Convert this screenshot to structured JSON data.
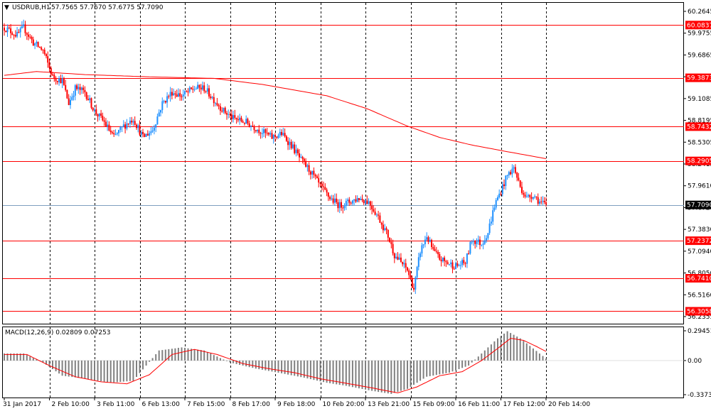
{
  "header": {
    "symbol": "USDRUB,H1",
    "ohlc": "57.7565 57.7670 57.6775 57.7090"
  },
  "macd_header": {
    "label": "MACD(12,26,9) 0.02809 0.07253"
  },
  "colors": {
    "bull": "#1e90ff",
    "bear": "#ff0000",
    "level_line": "#ff0000",
    "ma_line": "#ff0000",
    "current_line": "#7f9fbf",
    "macd_hist": "#808080",
    "macd_signal": "#ff0000",
    "grid": "#000000"
  },
  "price_axis": {
    "ticks": [
      "60.2645",
      "59.9755",
      "59.6865",
      "59.3975",
      "59.1085",
      "58.8195",
      "58.5305",
      "58.2415",
      "57.9610",
      "57.6720",
      "57.3830",
      "57.0940",
      "56.8050",
      "56.5160",
      "56.2355"
    ]
  },
  "time_axis": {
    "labels": [
      "31 Jan 2017",
      "2 Feb 10:00",
      "3 Feb 11:00",
      "6 Feb 13:00",
      "7 Feb 15:00",
      "8 Feb 17:00",
      "9 Feb 18:00",
      "10 Feb 20:00",
      "13 Feb 21:00",
      "15 Feb 09:00",
      "16 Feb 11:00",
      "17 Feb 12:00",
      "20 Feb 14:00"
    ]
  },
  "macd_axis": {
    "ticks": [
      "0.29451",
      "0.00",
      "-0.33739"
    ]
  },
  "chart_data": {
    "type": "candlestick",
    "title": "USDRUB,H1",
    "ylim": [
      56.2355,
      60.2645
    ],
    "horizontal_levels": [
      {
        "value": 60.0837,
        "label": "60.0837"
      },
      {
        "value": 59.3873,
        "label": "59.3873"
      },
      {
        "value": 58.7432,
        "label": "58.7432"
      },
      {
        "value": 58.2905,
        "label": "58.2905"
      },
      {
        "value": 57.2372,
        "label": "57.2372"
      },
      {
        "value": 56.741,
        "label": "56.7410"
      },
      {
        "value": 56.3058,
        "label": "56.3058"
      }
    ],
    "current_price": {
      "value": 57.709,
      "label": "57.7090"
    },
    "price_path": [
      [
        0,
        60.05
      ],
      [
        4,
        60.0
      ],
      [
        8,
        59.95
      ],
      [
        12,
        60.05
      ],
      [
        18,
        59.85
      ],
      [
        24,
        59.75
      ],
      [
        30,
        59.4
      ],
      [
        36,
        59.35
      ],
      [
        40,
        59.05
      ],
      [
        44,
        59.25
      ],
      [
        50,
        59.2
      ],
      [
        56,
        58.95
      ],
      [
        62,
        58.8
      ],
      [
        68,
        58.6
      ],
      [
        74,
        58.75
      ],
      [
        80,
        58.85
      ],
      [
        86,
        58.6
      ],
      [
        92,
        58.7
      ],
      [
        98,
        59.05
      ],
      [
        104,
        59.2
      ],
      [
        110,
        59.15
      ],
      [
        118,
        59.25
      ],
      [
        124,
        59.25
      ],
      [
        130,
        59.1
      ],
      [
        136,
        58.95
      ],
      [
        142,
        58.85
      ],
      [
        150,
        58.8
      ],
      [
        158,
        58.7
      ],
      [
        166,
        58.6
      ],
      [
        172,
        58.65
      ],
      [
        178,
        58.5
      ],
      [
        184,
        58.3
      ],
      [
        190,
        58.15
      ],
      [
        196,
        57.95
      ],
      [
        202,
        57.8
      ],
      [
        208,
        57.7
      ],
      [
        214,
        57.75
      ],
      [
        220,
        57.8
      ],
      [
        226,
        57.75
      ],
      [
        232,
        57.55
      ],
      [
        238,
        57.3
      ],
      [
        242,
        57.05
      ],
      [
        246,
        56.95
      ],
      [
        250,
        56.85
      ],
      [
        254,
        56.6
      ],
      [
        258,
        57.1
      ],
      [
        262,
        57.3
      ],
      [
        266,
        57.1
      ],
      [
        270,
        57.0
      ],
      [
        274,
        56.95
      ],
      [
        280,
        56.9
      ],
      [
        286,
        56.95
      ],
      [
        290,
        57.25
      ],
      [
        296,
        57.2
      ],
      [
        300,
        57.35
      ],
      [
        304,
        57.7
      ],
      [
        308,
        57.9
      ],
      [
        312,
        58.1
      ],
      [
        316,
        58.2
      ],
      [
        320,
        57.95
      ],
      [
        324,
        57.8
      ],
      [
        328,
        57.85
      ],
      [
        332,
        57.75
      ],
      [
        336,
        57.7
      ]
    ],
    "moving_average": [
      [
        0,
        59.42
      ],
      [
        20,
        59.47
      ],
      [
        50,
        59.43
      ],
      [
        90,
        59.4
      ],
      [
        130,
        59.38
      ],
      [
        160,
        59.3
      ],
      [
        200,
        59.15
      ],
      [
        225,
        58.98
      ],
      [
        250,
        58.75
      ],
      [
        270,
        58.6
      ],
      [
        290,
        58.5
      ],
      [
        310,
        58.42
      ],
      [
        336,
        58.32
      ]
    ],
    "macd": {
      "ylim": [
        -0.33739,
        0.29451
      ],
      "macd_path": [
        [
          0,
          0.07
        ],
        [
          12,
          0.07
        ],
        [
          24,
          -0.02
        ],
        [
          36,
          -0.15
        ],
        [
          50,
          -0.18
        ],
        [
          66,
          -0.22
        ],
        [
          80,
          -0.2
        ],
        [
          96,
          0.1
        ],
        [
          110,
          0.13
        ],
        [
          124,
          0.1
        ],
        [
          140,
          -0.02
        ],
        [
          156,
          -0.08
        ],
        [
          170,
          -0.12
        ],
        [
          186,
          -0.17
        ],
        [
          200,
          -0.22
        ],
        [
          212,
          -0.25
        ],
        [
          228,
          -0.3
        ],
        [
          240,
          -0.33
        ],
        [
          250,
          -0.28
        ],
        [
          262,
          -0.16
        ],
        [
          276,
          -0.12
        ],
        [
          288,
          -0.05
        ],
        [
          298,
          0.1
        ],
        [
          306,
          0.22
        ],
        [
          312,
          0.29
        ],
        [
          320,
          0.22
        ],
        [
          328,
          0.12
        ],
        [
          336,
          0.02
        ]
      ],
      "signal_path": [
        [
          0,
          0.06
        ],
        [
          14,
          0.06
        ],
        [
          28,
          -0.05
        ],
        [
          44,
          -0.16
        ],
        [
          60,
          -0.21
        ],
        [
          76,
          -0.23
        ],
        [
          90,
          -0.14
        ],
        [
          104,
          0.06
        ],
        [
          118,
          0.11
        ],
        [
          132,
          0.06
        ],
        [
          148,
          -0.03
        ],
        [
          164,
          -0.08
        ],
        [
          180,
          -0.12
        ],
        [
          196,
          -0.18
        ],
        [
          214,
          -0.23
        ],
        [
          228,
          -0.27
        ],
        [
          244,
          -0.32
        ],
        [
          256,
          -0.26
        ],
        [
          270,
          -0.15
        ],
        [
          284,
          -0.11
        ],
        [
          296,
          0.0
        ],
        [
          306,
          0.12
        ],
        [
          314,
          0.22
        ],
        [
          322,
          0.2
        ],
        [
          330,
          0.14
        ],
        [
          336,
          0.09
        ]
      ]
    }
  }
}
